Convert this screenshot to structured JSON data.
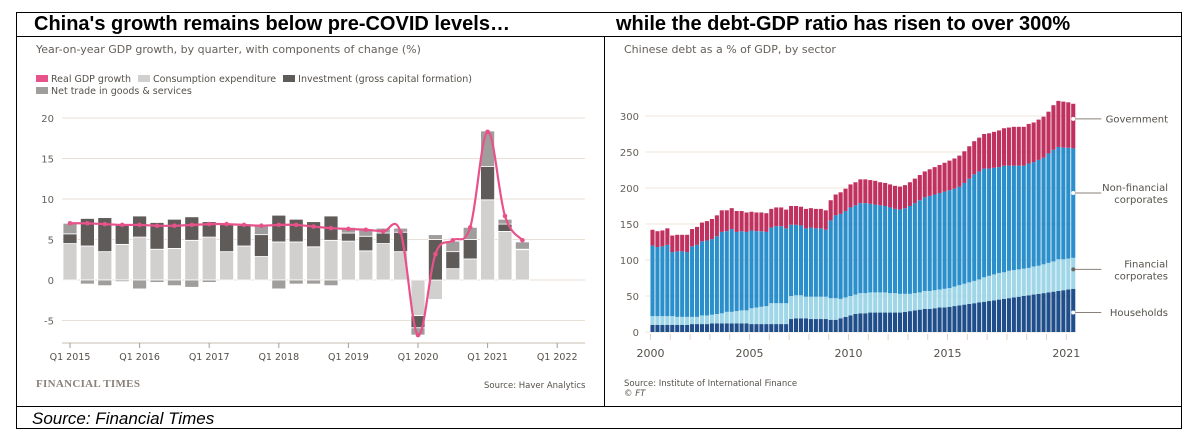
{
  "page": {
    "left_heading": "China's growth remains below pre-COVID levels…",
    "right_heading": "while the debt-GDP ratio has risen to over 300%",
    "footer_source": "Source: Financial Times"
  },
  "left_panel": {
    "subtitle": "Year-on-year GDP growth, by quarter, with components of change (%)",
    "legend": [
      {
        "label": "Real GDP growth",
        "color": "#e8528a"
      },
      {
        "label": "Consumption expenditure",
        "color": "#d2d0cf"
      },
      {
        "label": "Investment (gross capital formation)",
        "color": "#5e5b58"
      },
      {
        "label": "Net trade in goods & services",
        "color": "#a09e9c"
      }
    ],
    "brand": "FINANCIAL TIMES",
    "source": "Source: Haver Analytics"
  },
  "right_panel": {
    "subtitle": "Chinese debt as a % of GDP, by sector",
    "source": "Source: Institute of International Finance",
    "copyright": "© FT",
    "labels": [
      {
        "text": [
          "Government"
        ]
      },
      {
        "text": [
          "Non-financial",
          "corporates"
        ]
      },
      {
        "text": [
          "Financial",
          "corporates"
        ]
      },
      {
        "text": [
          "Households"
        ]
      }
    ]
  },
  "chart_data": [
    {
      "type": "bar",
      "stacked": true,
      "title": "Year-on-year GDP growth, by quarter, with components of change (%)",
      "xlabel": "",
      "ylabel": "%",
      "ylim": [
        -7,
        20
      ],
      "yticks": [
        -5,
        0,
        5,
        10,
        15,
        20
      ],
      "xticks": [
        "Q1 2015",
        "Q1 2016",
        "Q1 2017",
        "Q1 2018",
        "Q1 2019",
        "Q1 2020",
        "Q1 2021",
        "Q1 2022"
      ],
      "grid": true,
      "legend_position": "top-left",
      "categories": [
        "Q1 2015",
        "Q2 2015",
        "Q3 2015",
        "Q4 2015",
        "Q1 2016",
        "Q2 2016",
        "Q3 2016",
        "Q4 2016",
        "Q1 2017",
        "Q2 2017",
        "Q3 2017",
        "Q4 2017",
        "Q1 2018",
        "Q2 2018",
        "Q3 2018",
        "Q4 2018",
        "Q1 2019",
        "Q2 2019",
        "Q3 2019",
        "Q4 2019",
        "Q1 2020",
        "Q2 2020",
        "Q3 2020",
        "Q4 2020",
        "Q1 2021",
        "Q2 2021",
        "Q3 2021"
      ],
      "series": [
        {
          "name": "Consumption expenditure",
          "color": "#d2d0cf",
          "values": [
            4.5,
            4.2,
            3.5,
            4.4,
            5.3,
            3.8,
            3.9,
            4.9,
            5.3,
            3.5,
            4.2,
            2.9,
            4.7,
            4.7,
            4.1,
            4.9,
            4.8,
            3.6,
            4.5,
            3.5,
            -4.4,
            -2.4,
            1.4,
            2.6,
            9.9,
            6.0,
            3.8
          ]
        },
        {
          "name": "Investment (gross capital formation)",
          "color": "#5e5b58",
          "values": [
            1.2,
            3.4,
            4.2,
            2.5,
            2.6,
            3.3,
            3.6,
            2.9,
            1.9,
            3.5,
            2.6,
            2.7,
            3.3,
            2.8,
            3.1,
            3.0,
            1.0,
            1.8,
            1.3,
            2.4,
            -1.5,
            5.0,
            2.1,
            2.4,
            4.1,
            0.9,
            0.0
          ]
        },
        {
          "name": "Net trade in goods & services",
          "color": "#a09e9c",
          "values": [
            1.3,
            -0.5,
            -0.7,
            -0.2,
            -1.1,
            -0.3,
            -0.7,
            -0.9,
            -0.3,
            0.0,
            0.0,
            1.1,
            -1.1,
            -0.5,
            -0.5,
            -0.7,
            0.7,
            0.8,
            0.6,
            0.5,
            -0.9,
            0.6,
            1.3,
            1.5,
            4.4,
            0.6,
            0.9
          ]
        },
        {
          "name": "Real GDP growth",
          "type": "line",
          "color": "#e8528a",
          "values": [
            7.0,
            7.0,
            6.9,
            6.8,
            6.8,
            6.7,
            6.7,
            6.8,
            6.9,
            6.9,
            6.8,
            6.7,
            6.8,
            6.8,
            6.6,
            6.4,
            6.3,
            6.2,
            6.0,
            5.9,
            -6.8,
            3.2,
            4.9,
            6.5,
            18.3,
            7.9,
            4.9
          ]
        }
      ]
    },
    {
      "type": "bar",
      "stacked": true,
      "title": "Chinese debt as a % of GDP, by sector",
      "xlabel": "",
      "ylabel": "% of GDP",
      "ylim": [
        0,
        335
      ],
      "yticks": [
        0,
        50,
        100,
        150,
        200,
        250,
        300
      ],
      "xticks": [
        "2000",
        "2005",
        "2010",
        "2015",
        "2021"
      ],
      "grid": true,
      "legend_position": "right (direct labels)",
      "x_start": "2000 Q1",
      "x_end": "2021 Q2",
      "series": [
        {
          "name": "Households",
          "color": "#1f4e8a",
          "values": [
            10,
            10,
            10,
            10,
            10,
            10,
            10,
            10,
            11,
            11,
            11,
            11,
            12,
            12,
            12,
            12,
            12,
            12,
            12,
            12,
            11,
            11,
            11,
            11,
            11,
            11,
            11,
            11,
            18,
            19,
            19,
            19,
            18,
            18,
            18,
            18,
            17,
            17,
            19,
            21,
            23,
            25,
            26,
            26,
            27,
            27,
            27,
            27,
            27,
            27,
            27,
            28,
            29,
            30,
            31,
            32,
            32,
            33,
            34,
            34,
            35,
            36,
            37,
            38,
            39,
            40,
            41,
            42,
            43,
            44,
            45,
            46,
            47,
            48,
            49,
            50,
            51,
            52,
            53,
            54,
            55,
            56,
            57,
            58,
            59,
            60
          ]
        },
        {
          "name": "Financial corporates",
          "color": "#9fd6e8",
          "values": [
            12,
            12,
            12,
            12,
            12,
            11,
            11,
            11,
            10,
            10,
            12,
            12,
            12,
            13,
            14,
            16,
            16,
            17,
            18,
            18,
            22,
            23,
            24,
            25,
            29,
            29,
            29,
            29,
            32,
            32,
            32,
            30,
            31,
            31,
            31,
            31,
            30,
            30,
            27,
            27,
            27,
            27,
            28,
            28,
            28,
            28,
            28,
            28,
            27,
            27,
            26,
            25,
            24,
            24,
            24,
            25,
            25,
            25,
            25,
            26,
            26,
            27,
            28,
            29,
            30,
            31,
            32,
            34,
            35,
            36,
            37,
            37,
            38,
            38,
            38,
            38,
            38,
            39,
            39,
            40,
            41,
            42,
            44,
            43,
            43,
            43
          ]
        },
        {
          "name": "Non-financial corporates",
          "color": "#2b8fcb",
          "values": [
            98,
            96,
            97,
            99,
            89,
            91,
            91,
            90,
            98,
            100,
            103,
            104,
            105,
            108,
            113,
            112,
            115,
            110,
            110,
            109,
            108,
            106,
            105,
            103,
            105,
            107,
            107,
            104,
            99,
            98,
            97,
            95,
            96,
            95,
            95,
            93,
            108,
            115,
            118,
            120,
            123,
            124,
            125,
            125,
            123,
            122,
            121,
            120,
            119,
            117,
            117,
            119,
            122,
            125,
            128,
            130,
            132,
            133,
            134,
            135,
            136,
            136,
            137,
            140,
            144,
            148,
            150,
            151,
            149,
            148,
            147,
            148,
            146,
            145,
            144,
            143,
            145,
            145,
            147,
            148,
            152,
            155,
            156,
            155,
            154,
            152
          ]
        },
        {
          "name": "Government",
          "color": "#c0315f",
          "values": [
            22,
            22,
            22,
            23,
            23,
            23,
            23,
            24,
            24,
            25,
            26,
            27,
            28,
            29,
            30,
            29,
            29,
            29,
            28,
            27,
            26,
            26,
            26,
            26,
            26,
            26,
            26,
            26,
            26,
            26,
            26,
            27,
            27,
            27,
            27,
            27,
            28,
            29,
            30,
            31,
            32,
            32,
            33,
            33,
            33,
            33,
            32,
            32,
            32,
            32,
            32,
            32,
            33,
            34,
            35,
            36,
            37,
            38,
            39,
            40,
            41,
            42,
            43,
            44,
            45,
            46,
            47,
            48,
            49,
            50,
            51,
            52,
            53,
            54,
            54,
            54,
            55,
            55,
            56,
            57,
            58,
            62,
            64,
            64,
            63,
            62
          ]
        }
      ]
    }
  ]
}
